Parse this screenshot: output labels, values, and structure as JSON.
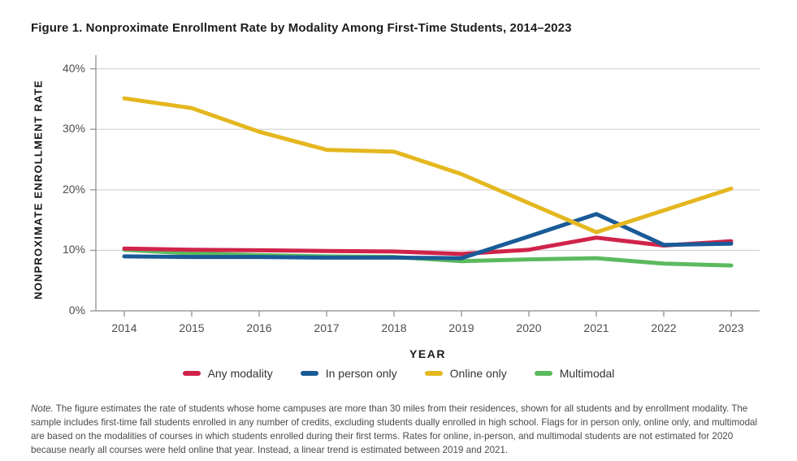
{
  "figure": {
    "title": "Figure 1. Nonproximate Enrollment Rate by Modality Among First-Time Students, 2014–2023",
    "note_label": "Note.",
    "note_text": " The figure estimates the rate of students whose home campuses are more than 30 miles from their residences, shown for all students and by enrollment modality. The sample includes first-time fall students enrolled in any number of credits, excluding students dually enrolled in high school. Flags for in person only, online only, and multimodal are based on the modalities of courses in which students enrolled during their first terms. Rates for online, in-person, and multimodal students are not estimated for 2020 because nearly all courses were held online that year. Instead, a linear trend is estimated between 2019 and 2021."
  },
  "chart_data": {
    "type": "line",
    "title": "Figure 1. Nonproximate Enrollment Rate by Modality Among First-Time Students, 2014–2023",
    "xlabel": "YEAR",
    "ylabel": "NONPROXIMATE ENROLLMENT RATE",
    "x": [
      2014,
      2015,
      2016,
      2017,
      2018,
      2019,
      2020,
      2021,
      2022,
      2023
    ],
    "series": [
      {
        "name": "Any modality",
        "color": "#d0234a",
        "values": [
          10.3,
          10.1,
          10.0,
          9.9,
          9.8,
          9.4,
          10.1,
          12.1,
          10.8,
          11.5
        ]
      },
      {
        "name": "In person only",
        "color": "#1a5b97",
        "values": [
          9.0,
          8.9,
          8.9,
          8.8,
          8.8,
          8.7,
          12.3,
          16.0,
          10.9,
          11.1
        ]
      },
      {
        "name": "Online only",
        "color": "#e4b71f",
        "values": [
          35.1,
          33.5,
          29.6,
          26.6,
          26.3,
          22.6,
          17.8,
          13.0,
          16.6,
          20.2
        ]
      },
      {
        "name": "Multimodal",
        "color": "#5cba5e",
        "values": [
          10.1,
          9.5,
          9.2,
          9.0,
          8.9,
          8.2,
          8.5,
          8.7,
          7.8,
          7.5
        ]
      }
    ],
    "draw_order": [
      "Multimodal",
      "Any modality",
      "In person only",
      "Online only"
    ],
    "ylim": [
      0,
      42
    ],
    "yticks": [
      0,
      10,
      20,
      30,
      40
    ],
    "ytick_suffix": "%",
    "grid": "horizontal",
    "legend_position": "bottom"
  },
  "colors": {
    "grid": "#cccccc",
    "axis": "#9e9e9e",
    "tick_label": "#4d4d4d",
    "title_text": "#1c1c1c",
    "note_text": "#4a4a4a"
  }
}
